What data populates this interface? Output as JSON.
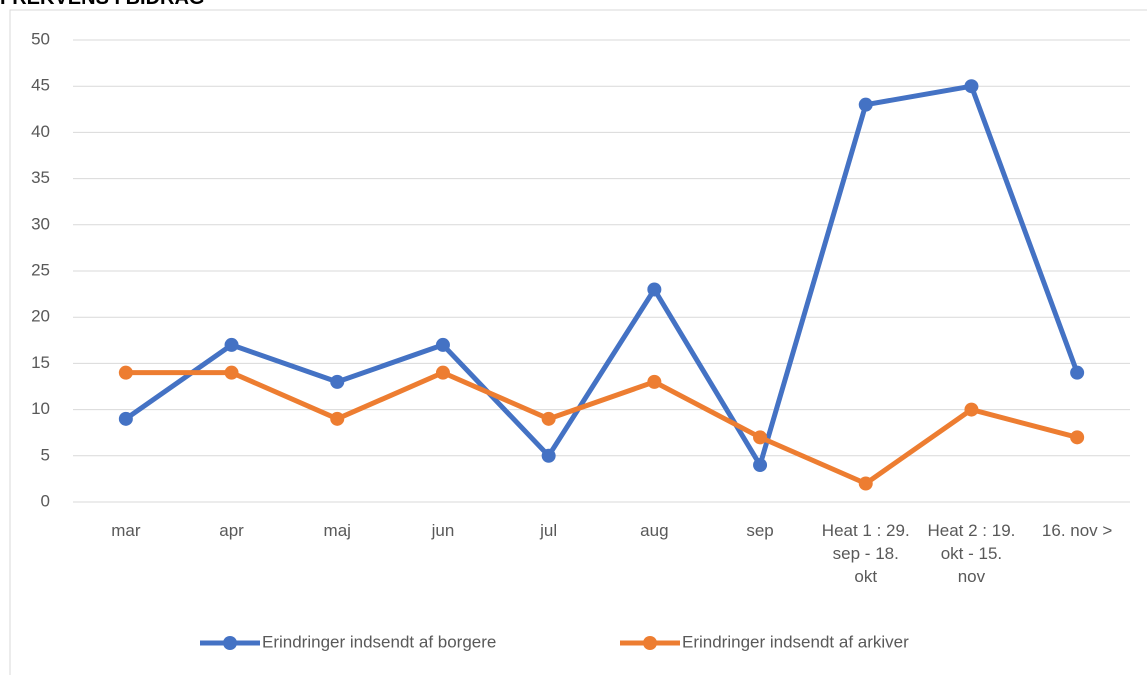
{
  "chart_data": {
    "type": "line",
    "title": "FREKVENS I BIDRAG",
    "categories": [
      "mar",
      "apr",
      "maj",
      "jun",
      "jul",
      "aug",
      "sep",
      "Heat 1 : 29. sep - 18. okt",
      "Heat 2 : 19. okt - 15. nov",
      "16. nov >"
    ],
    "series": [
      {
        "name": "Erindringer indsendt af borgere",
        "color": "#4472c4",
        "values": [
          9,
          17,
          13,
          17,
          5,
          23,
          4,
          43,
          45,
          14
        ]
      },
      {
        "name": "Erindringer indsendt af arkiver",
        "color": "#ed7d31",
        "values": [
          14,
          14,
          9,
          14,
          9,
          13,
          7,
          2,
          10,
          7
        ]
      }
    ],
    "ylim": [
      0,
      50
    ],
    "yticks": [
      0,
      5,
      10,
      15,
      20,
      25,
      30,
      35,
      40,
      45,
      50
    ],
    "grid": true,
    "legend": "bottom"
  }
}
